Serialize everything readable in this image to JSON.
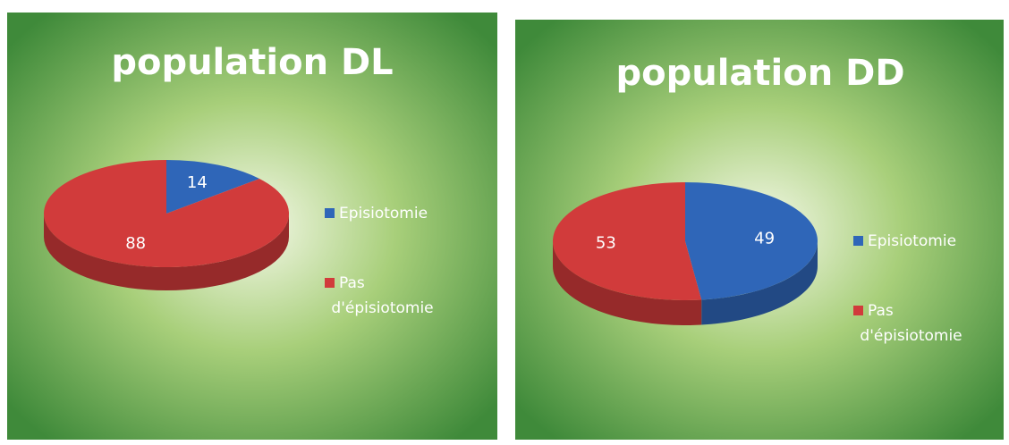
{
  "chart_data": [
    {
      "type": "pie",
      "title": "population DL",
      "categories": [
        "Episiotomie",
        "Pas d'épisiotomie"
      ],
      "values": [
        14,
        88
      ],
      "colors": [
        "#2f66b8",
        "#d13b3b"
      ],
      "legend": "right"
    },
    {
      "type": "pie",
      "title": "population DD",
      "categories": [
        "Episiotomie",
        "Pas d'épisiotomie"
      ],
      "values": [
        49,
        53
      ],
      "colors": [
        "#2f66b8",
        "#d13b3b"
      ],
      "legend": "right"
    }
  ]
}
